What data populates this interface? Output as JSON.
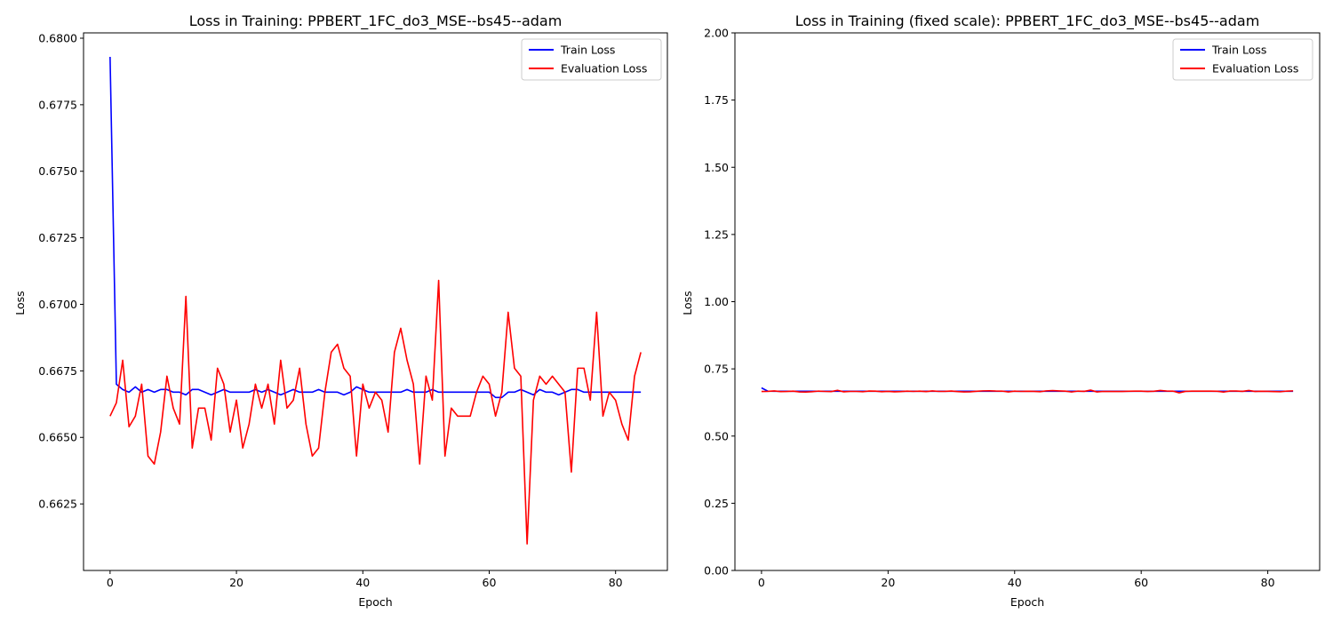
{
  "chart_data": [
    {
      "type": "line",
      "title": "Loss in Training: PPBERT_1FC_do3_MSE--bs45--adam",
      "xlabel": "Epoch",
      "ylabel": "Loss",
      "xlim": [
        -4.2,
        88.2
      ],
      "ylim": [
        0.66,
        0.6802
      ],
      "xticks": [
        0,
        20,
        40,
        60,
        80
      ],
      "xtick_labels": [
        "0",
        "20",
        "40",
        "60",
        "80"
      ],
      "yticks": [
        0.6625,
        0.665,
        0.6675,
        0.67,
        0.6725,
        0.675,
        0.6775,
        0.68
      ],
      "ytick_labels": [
        "0.6625",
        "0.6650",
        "0.6675",
        "0.6700",
        "0.6725",
        "0.6750",
        "0.6775",
        "0.6800"
      ],
      "grid": false,
      "legend": "top-right",
      "series": [
        {
          "name": "Train Loss",
          "color": "#0000ff",
          "values": [
            0.6793,
            0.667,
            0.6668,
            0.6667,
            0.6669,
            0.6667,
            0.6668,
            0.6667,
            0.6668,
            0.6668,
            0.6667,
            0.6667,
            0.6666,
            0.6668,
            0.6668,
            0.6667,
            0.6666,
            0.6667,
            0.6668,
            0.6667,
            0.6667,
            0.6667,
            0.6667,
            0.6668,
            0.6667,
            0.6668,
            0.6667,
            0.6666,
            0.6667,
            0.6668,
            0.6667,
            0.6667,
            0.6667,
            0.6668,
            0.6667,
            0.6667,
            0.6667,
            0.6666,
            0.6667,
            0.6669,
            0.6668,
            0.6667,
            0.6667,
            0.6667,
            0.6667,
            0.6667,
            0.6667,
            0.6668,
            0.6667,
            0.6667,
            0.6667,
            0.6668,
            0.6667,
            0.6667,
            0.6667,
            0.6667,
            0.6667,
            0.6667,
            0.6667,
            0.6667,
            0.6667,
            0.6665,
            0.6665,
            0.6667,
            0.6667,
            0.6668,
            0.6667,
            0.6666,
            0.6668,
            0.6667,
            0.6667,
            0.6666,
            0.6667,
            0.6668,
            0.6668,
            0.6667,
            0.6667,
            0.6667,
            0.6667,
            0.6667,
            0.6667,
            0.6667,
            0.6667,
            0.6667,
            0.6667
          ]
        },
        {
          "name": "Evaluation Loss",
          "color": "#ff0000",
          "values": [
            0.6658,
            0.6663,
            0.6679,
            0.6654,
            0.6658,
            0.667,
            0.6643,
            0.664,
            0.6652,
            0.6673,
            0.6661,
            0.6655,
            0.6703,
            0.6646,
            0.6661,
            0.6661,
            0.6649,
            0.6676,
            0.667,
            0.6652,
            0.6664,
            0.6646,
            0.6655,
            0.667,
            0.6661,
            0.667,
            0.6655,
            0.6679,
            0.6661,
            0.6664,
            0.6676,
            0.6655,
            0.6643,
            0.6646,
            0.6667,
            0.6682,
            0.6685,
            0.6676,
            0.6673,
            0.6643,
            0.667,
            0.6661,
            0.6667,
            0.6664,
            0.6652,
            0.6682,
            0.6691,
            0.6679,
            0.667,
            0.664,
            0.6673,
            0.6664,
            0.6709,
            0.6643,
            0.6661,
            0.6658,
            0.6658,
            0.6658,
            0.6667,
            0.6673,
            0.667,
            0.6658,
            0.6667,
            0.6697,
            0.6676,
            0.6673,
            0.661,
            0.6664,
            0.6673,
            0.667,
            0.6673,
            0.667,
            0.6667,
            0.6637,
            0.6676,
            0.6676,
            0.6664,
            0.6697,
            0.6658,
            0.6667,
            0.6664,
            0.6655,
            0.6649,
            0.6673,
            0.6682
          ]
        }
      ]
    },
    {
      "type": "line",
      "title": "Loss in Training (fixed scale): PPBERT_1FC_do3_MSE--bs45--adam",
      "xlabel": "Epoch",
      "ylabel": "Loss",
      "xlim": [
        -4.2,
        88.2
      ],
      "ylim": [
        0,
        2
      ],
      "xticks": [
        0,
        20,
        40,
        60,
        80
      ],
      "xtick_labels": [
        "0",
        "20",
        "40",
        "60",
        "80"
      ],
      "yticks": [
        0,
        0.25,
        0.5,
        0.75,
        1.0,
        1.25,
        1.5,
        1.75,
        2.0
      ],
      "ytick_labels": [
        "0.00",
        "0.25",
        "0.50",
        "0.75",
        "1.00",
        "1.25",
        "1.50",
        "1.75",
        "2.00"
      ],
      "grid": false,
      "legend": "top-right",
      "series_ref": "same as left chart",
      "series": [
        {
          "name": "Train Loss",
          "color": "#0000ff",
          "values": [
            0.6793,
            0.667,
            0.6668,
            0.6667,
            0.6669,
            0.6667,
            0.6668,
            0.6667,
            0.6668,
            0.6668,
            0.6667,
            0.6667,
            0.6666,
            0.6668,
            0.6668,
            0.6667,
            0.6666,
            0.6667,
            0.6668,
            0.6667,
            0.6667,
            0.6667,
            0.6667,
            0.6668,
            0.6667,
            0.6668,
            0.6667,
            0.6666,
            0.6667,
            0.6668,
            0.6667,
            0.6667,
            0.6667,
            0.6668,
            0.6667,
            0.6667,
            0.6667,
            0.6666,
            0.6667,
            0.6669,
            0.6668,
            0.6667,
            0.6667,
            0.6667,
            0.6667,
            0.6667,
            0.6667,
            0.6668,
            0.6667,
            0.6667,
            0.6667,
            0.6668,
            0.6667,
            0.6667,
            0.6667,
            0.6667,
            0.6667,
            0.6667,
            0.6667,
            0.6667,
            0.6667,
            0.6665,
            0.6665,
            0.6667,
            0.6667,
            0.6668,
            0.6667,
            0.6666,
            0.6668,
            0.6667,
            0.6667,
            0.6666,
            0.6667,
            0.6668,
            0.6668,
            0.6667,
            0.6667,
            0.6667,
            0.6667,
            0.6667,
            0.6667,
            0.6667,
            0.6667,
            0.6667,
            0.6667
          ]
        },
        {
          "name": "Evaluation Loss",
          "color": "#ff0000",
          "values": [
            0.6658,
            0.6663,
            0.6679,
            0.6654,
            0.6658,
            0.667,
            0.6643,
            0.664,
            0.6652,
            0.6673,
            0.6661,
            0.6655,
            0.6703,
            0.6646,
            0.6661,
            0.6661,
            0.6649,
            0.6676,
            0.667,
            0.6652,
            0.6664,
            0.6646,
            0.6655,
            0.667,
            0.6661,
            0.667,
            0.6655,
            0.6679,
            0.6661,
            0.6664,
            0.6676,
            0.6655,
            0.6643,
            0.6646,
            0.6667,
            0.6682,
            0.6685,
            0.6676,
            0.6673,
            0.6643,
            0.667,
            0.6661,
            0.6667,
            0.6664,
            0.6652,
            0.6682,
            0.6691,
            0.6679,
            0.667,
            0.664,
            0.6673,
            0.6664,
            0.6709,
            0.6643,
            0.6661,
            0.6658,
            0.6658,
            0.6658,
            0.6667,
            0.6673,
            0.667,
            0.6658,
            0.6667,
            0.6697,
            0.6676,
            0.6673,
            0.661,
            0.6664,
            0.6673,
            0.667,
            0.6673,
            0.667,
            0.6667,
            0.6637,
            0.6676,
            0.6676,
            0.6664,
            0.6697,
            0.6658,
            0.6667,
            0.6664,
            0.6655,
            0.6649,
            0.6673,
            0.6682
          ]
        }
      ]
    }
  ]
}
